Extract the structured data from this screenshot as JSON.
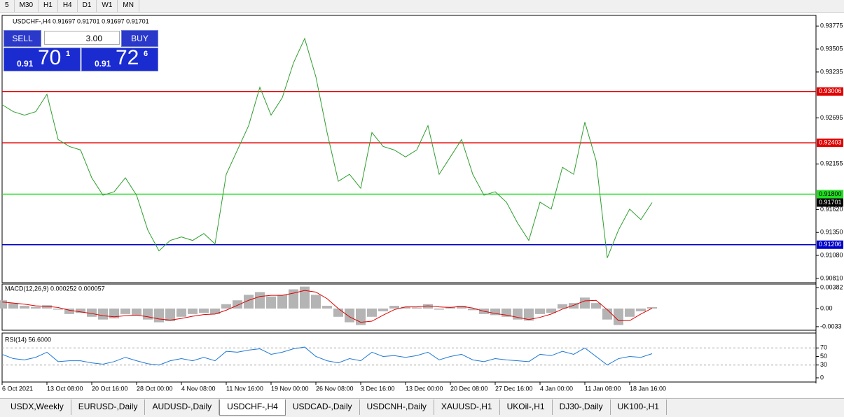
{
  "toolbar": {
    "timeframes": [
      "5",
      "M30",
      "H1",
      "H4",
      "D1",
      "W1",
      "MN"
    ]
  },
  "trade_panel": {
    "sell": "SELL",
    "buy": "BUY",
    "lot": "3.00",
    "sell_price": {
      "prefix": "0.91",
      "big": "70",
      "small": "1"
    },
    "buy_price": {
      "prefix": "0.91",
      "big": "72",
      "small": "6"
    }
  },
  "chart_data": [
    {
      "type": "line",
      "title": "USDCHF-,H4 0.91697 0.91701 0.91697 0.91701",
      "categories": [
        "6 Oct 2021",
        null,
        null,
        null,
        "13 Oct 08:00",
        null,
        null,
        null,
        "20 Oct 16:00",
        null,
        null,
        null,
        "28 Oct 00:00",
        null,
        null,
        null,
        "4 Nov 08:00",
        null,
        null,
        null,
        "11 Nov 16:00",
        null,
        null,
        null,
        "19 Nov 00:00",
        null,
        null,
        null,
        "26 Nov 08:00",
        null,
        null,
        null,
        "3 Dec 16:00",
        null,
        null,
        null,
        "13 Dec 00:00",
        null,
        null,
        null,
        "20 Dec 08:00",
        null,
        null,
        null,
        "27 Dec 16:00",
        null,
        null,
        null,
        "4 Jan 00:00",
        null,
        null,
        null,
        "11 Jan 08:00",
        null,
        null,
        null,
        "18 Jan 16:00",
        null,
        null
      ],
      "values": [
        0.92851,
        0.92769,
        0.92728,
        0.92769,
        0.92973,
        0.92442,
        0.9236,
        0.92319,
        0.91992,
        0.91787,
        0.91828,
        0.91992,
        0.91787,
        0.91378,
        0.91133,
        0.91256,
        0.91297,
        0.91256,
        0.91337,
        0.91215,
        0.92033,
        0.92319,
        0.92605,
        0.93055,
        0.92728,
        0.92933,
        0.93342,
        0.93628,
        0.93178,
        0.92524,
        0.91951,
        0.92033,
        0.91869,
        0.92524,
        0.9236,
        0.92319,
        0.92237,
        0.92319,
        0.92605,
        0.92033,
        0.92237,
        0.92442,
        0.92033,
        0.91787,
        0.91828,
        0.91706,
        0.9146,
        0.91256,
        0.91706,
        0.91624,
        0.92115,
        0.92033,
        0.92646,
        0.92196,
        0.91051,
        0.91378,
        0.91624,
        0.91501,
        0.91701
      ],
      "color": "#2e9e2e",
      "ylim": [
        0.9076,
        0.939
      ],
      "yticks": [
        0.93775,
        0.93505,
        0.93235,
        0.92695,
        0.92155,
        {
          "value": 0.9162,
          "label": "0.91620"
        },
        {
          "value": 0.9135,
          "label": "0.91350"
        },
        {
          "value": 0.9108,
          "label": "0.91080"
        },
        {
          "value": 0.9081,
          "label": "0.90810"
        }
      ],
      "hlines": [
        {
          "value": 0.93006,
          "color": "#e00000"
        },
        {
          "value": 0.92403,
          "color": "#e00000"
        },
        {
          "value": 0.918,
          "label": "0.91800",
          "color": "#22dd22"
        },
        {
          "value": 0.91206,
          "color": "#0000cc"
        }
      ],
      "last_price": 0.91701
    },
    {
      "type": "macd",
      "title": "MACD(12,26,9) 0.000252 0.000057",
      "histogram": {
        "color": "#b4b4b4",
        "values": [
          0.0015,
          0.001,
          0.0005,
          0.0003,
          0.0006,
          -0.0002,
          -0.001,
          -0.0008,
          -0.0015,
          -0.002,
          -0.0018,
          -0.001,
          -0.0012,
          -0.002,
          -0.0025,
          -0.0023,
          -0.0015,
          -0.001,
          -0.0008,
          -0.001,
          0.0008,
          0.0015,
          0.0025,
          0.003,
          0.0022,
          0.0025,
          0.0035,
          0.004,
          0.0025,
          0.0005,
          -0.0015,
          -0.0025,
          -0.003,
          -0.0015,
          -0.0005,
          0.0005,
          0.0003,
          0.0002,
          0.0008,
          -0.0002,
          0.0003,
          0.0005,
          -0.0003,
          -0.001,
          -0.0012,
          -0.0015,
          -0.002,
          -0.0022,
          -0.001,
          -0.0008,
          0.0008,
          0.001,
          0.002,
          0.001,
          -0.002,
          -0.003,
          -0.0015,
          -0.0005,
          0.000252
        ]
      },
      "signal": {
        "color": "#e00000",
        "values": [
          0.0012,
          0.001,
          0.0008,
          0.0005,
          0.0004,
          0.0002,
          -0.0003,
          -0.0006,
          -0.0009,
          -0.0013,
          -0.0015,
          -0.0013,
          -0.0012,
          -0.0015,
          -0.0019,
          -0.0021,
          -0.0018,
          -0.0014,
          -0.0011,
          -0.001,
          -0.0003,
          0.0006,
          0.0015,
          0.0022,
          0.0024,
          0.0024,
          0.0028,
          0.0033,
          0.003,
          0.0018,
          0.0,
          -0.0015,
          -0.0025,
          -0.0023,
          -0.0012,
          -0.0002,
          0.0003,
          0.0003,
          0.0005,
          0.0003,
          0.0002,
          0.0004,
          0.0001,
          -0.0005,
          -0.0009,
          -0.0012,
          -0.0016,
          -0.002,
          -0.0016,
          -0.001,
          -0.0001,
          0.0006,
          0.0014,
          0.0015,
          -0.0002,
          -0.0022,
          -0.0022,
          -0.001,
          5.7e-05
        ]
      },
      "ylim": [
        -0.00395,
        0.00446
      ],
      "yticks": [
        0.00382,
        {
          "value": 0,
          "label": "0.00"
        },
        -0.0033
      ]
    },
    {
      "type": "line",
      "title": "RSI(14) 56.6000",
      "values": [
        55,
        45,
        42,
        48,
        60,
        38,
        40,
        40,
        35,
        32,
        38,
        48,
        40,
        33,
        30,
        40,
        45,
        40,
        48,
        40,
        62,
        60,
        65,
        68,
        55,
        60,
        68,
        72,
        50,
        40,
        35,
        45,
        40,
        60,
        50,
        52,
        48,
        52,
        60,
        42,
        50,
        55,
        42,
        38,
        45,
        42,
        40,
        38,
        55,
        52,
        62,
        55,
        70,
        50,
        30,
        45,
        50,
        48,
        56.6
      ],
      "color": "#1e78d6",
      "ylim": [
        0,
        100
      ],
      "yticks": [
        70,
        50,
        30,
        0
      ],
      "levels": [
        70,
        30
      ]
    }
  ],
  "tabs": {
    "items": [
      "USDX,Weekly",
      "EURUSD-,Daily",
      "AUDUSD-,Daily",
      "USDCHF-,H4",
      "USDCAD-,Daily",
      "USDCNH-,Daily",
      "XAUUSD-,H1",
      "UKOil-,H1",
      "DJ30-,Daily",
      "UK100-,H1"
    ],
    "active": 3
  }
}
